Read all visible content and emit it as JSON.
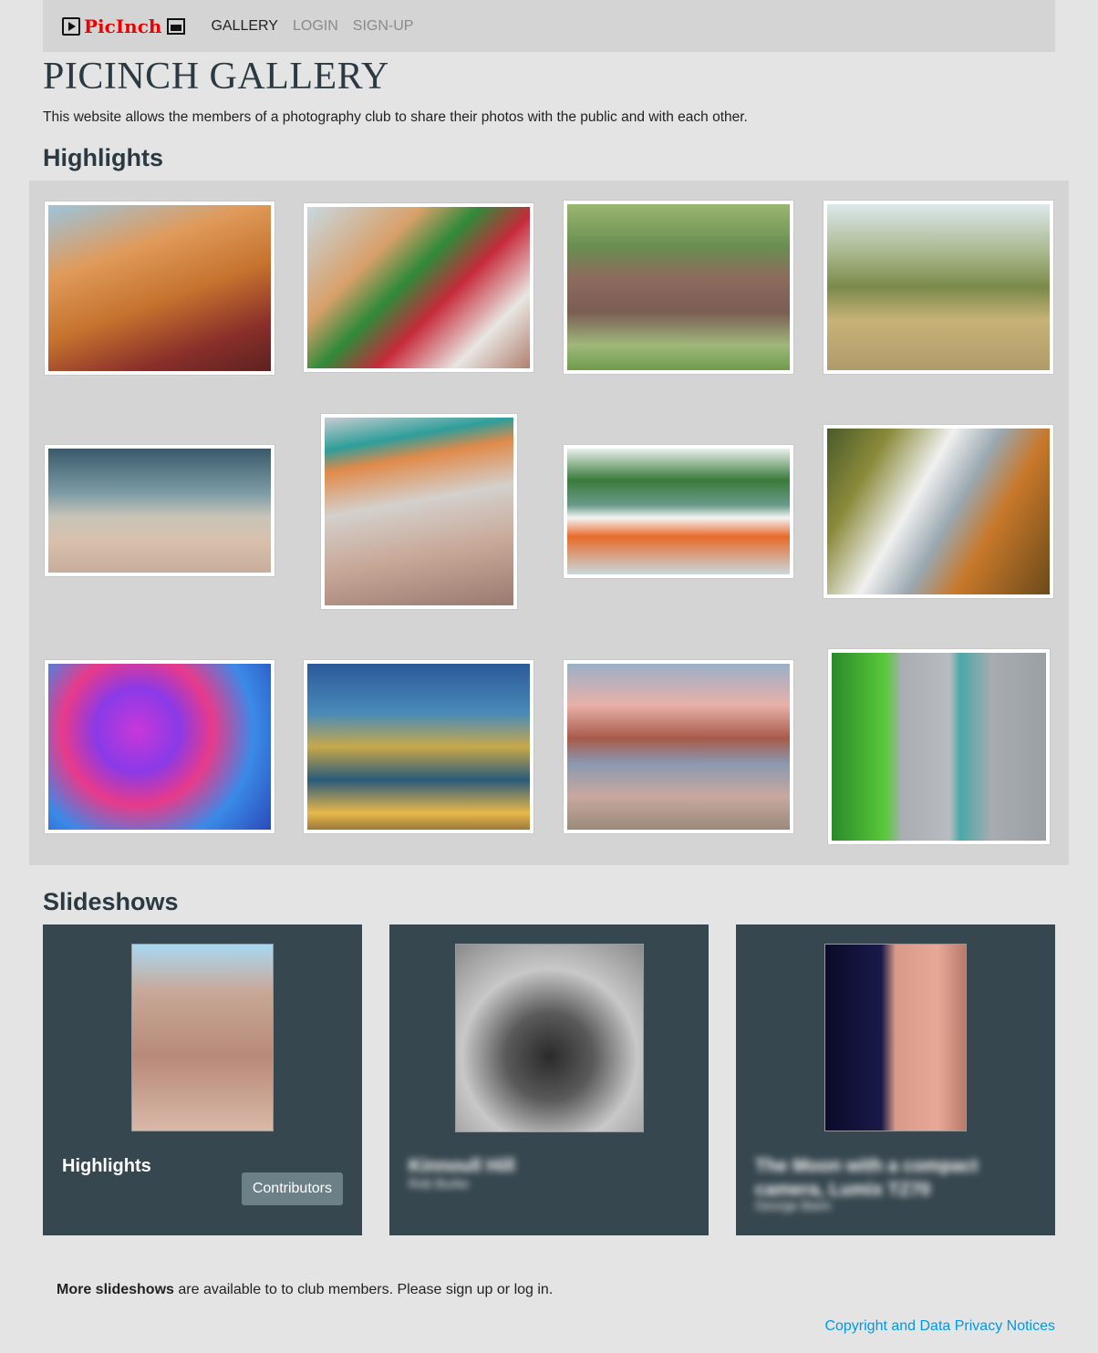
{
  "nav": {
    "brand": "PicInch",
    "links": [
      "GALLERY",
      "LOGIN",
      "SIGN-UP"
    ],
    "active": "GALLERY"
  },
  "page": {
    "title": "PICINCH GALLERY",
    "intro": "This website allows the members of a photography club to share their photos with the public and with each other."
  },
  "highlights": {
    "heading": "Highlights"
  },
  "slideshows": {
    "heading": "Slideshows",
    "cards": [
      {
        "title": "Highlights",
        "subtitle": "",
        "button": "Contributors"
      },
      {
        "title": "Kinnoull Hill",
        "subtitle": "Rob Burke"
      },
      {
        "title": "The Moon with a compact camera, Lumix TZ70",
        "subtitle": "George Bann"
      }
    ]
  },
  "footer": {
    "more_bold": "More slideshows",
    "more_rest": " are available to to club members. Please sign up or log in.",
    "copyright": "Copyright and Data Privacy Notices"
  }
}
